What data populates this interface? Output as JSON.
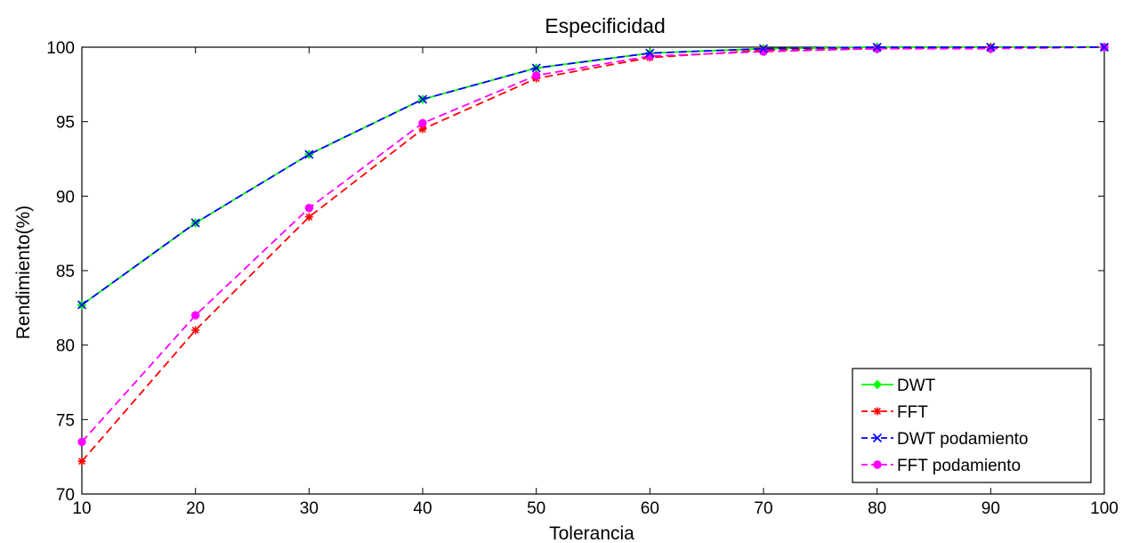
{
  "chart_data": {
    "type": "line",
    "title": "Especificidad",
    "xlabel": "Tolerancia",
    "ylabel": "Rendimiento(%)",
    "xlim": [
      10,
      100
    ],
    "ylim": [
      70,
      100
    ],
    "xticks": [
      10,
      20,
      30,
      40,
      50,
      60,
      70,
      80,
      90,
      100
    ],
    "yticks": [
      70,
      75,
      80,
      85,
      90,
      95,
      100
    ],
    "grid": false,
    "legend_position": "bottom-right",
    "x": [
      10,
      20,
      30,
      40,
      50,
      60,
      70,
      80,
      90,
      100
    ],
    "series": [
      {
        "name": "DWT",
        "values": [
          82.7,
          88.2,
          92.8,
          96.5,
          98.6,
          99.6,
          99.9,
          100,
          100,
          100
        ],
        "color": "#00ff00",
        "dash": "solid",
        "marker": "diamond"
      },
      {
        "name": "FFT",
        "values": [
          72.2,
          81.0,
          88.6,
          94.5,
          97.9,
          99.3,
          99.8,
          99.9,
          100,
          100
        ],
        "color": "#ff0000",
        "dash": "dashed",
        "marker": "asterisk"
      },
      {
        "name": "DWT podamiento",
        "values": [
          82.7,
          88.2,
          92.8,
          96.5,
          98.6,
          99.6,
          99.9,
          100,
          100,
          100
        ],
        "color": "#0000ff",
        "dash": "dashed",
        "marker": "x"
      },
      {
        "name": "FFT podamiento",
        "values": [
          73.5,
          82.0,
          89.2,
          94.9,
          98.1,
          99.4,
          99.7,
          99.9,
          99.9,
          100
        ],
        "color": "#ff00ff",
        "dash": "dashed",
        "marker": "circle"
      }
    ]
  }
}
